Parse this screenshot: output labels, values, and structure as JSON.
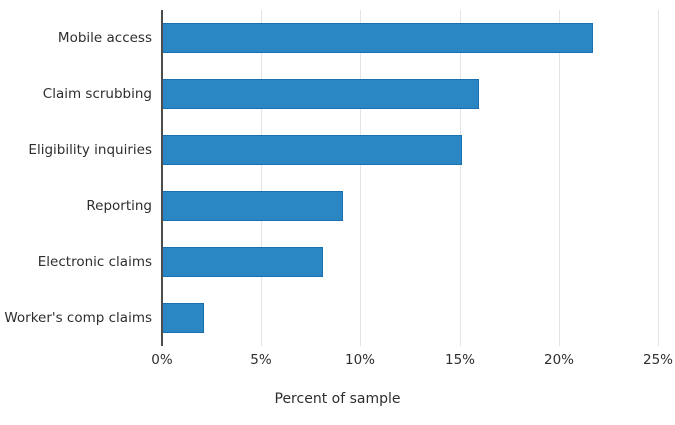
{
  "chart_data": {
    "type": "bar",
    "orientation": "horizontal",
    "title": "",
    "categories": [
      "Mobile access",
      "Claim scrubbing",
      "Eligibility inquiries",
      "Reporting",
      "Electronic claims",
      "Worker's comp claims"
    ],
    "values": [
      21.7,
      16.0,
      15.1,
      9.1,
      8.1,
      2.1
    ],
    "xlabel": "Percent of sample",
    "ylabel": "",
    "xlim": [
      0,
      25
    ],
    "x_ticks": [
      {
        "value": 0,
        "label": "0%"
      },
      {
        "value": 5,
        "label": "5%"
      },
      {
        "value": 10,
        "label": "10%"
      },
      {
        "value": 15,
        "label": "15%"
      },
      {
        "value": 20,
        "label": "20%"
      },
      {
        "value": 25,
        "label": "25%"
      }
    ],
    "grid": true,
    "legend": false,
    "colors": {
      "bar_fill": "#2b87c4",
      "bar_border": "#1a6faf",
      "gridline": "#e4e4e4",
      "axis_line": "#4d4d4d",
      "text": "#2e2e2e"
    }
  }
}
